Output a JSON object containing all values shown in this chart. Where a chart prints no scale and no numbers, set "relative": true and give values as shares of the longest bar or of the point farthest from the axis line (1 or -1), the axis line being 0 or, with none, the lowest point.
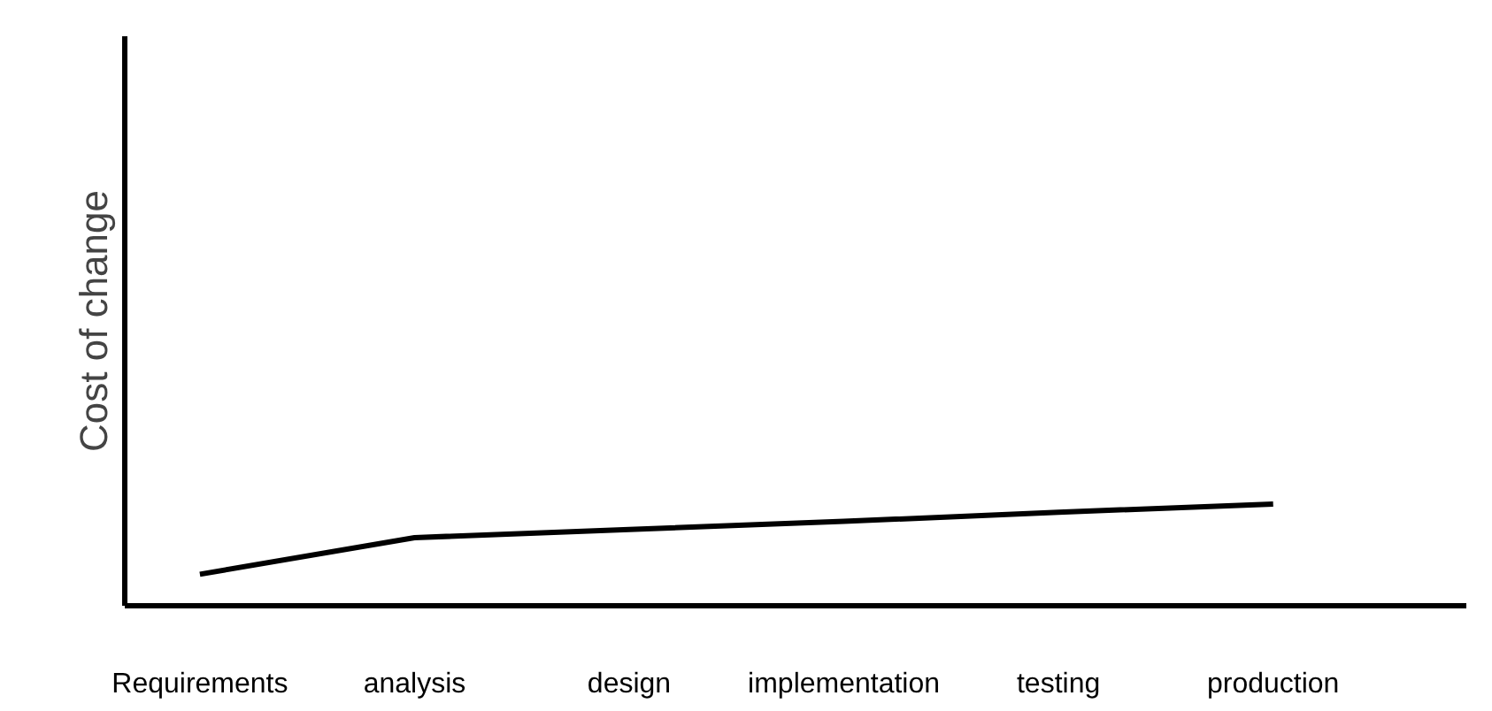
{
  "chart_data": {
    "type": "line",
    "relative": true,
    "ylabel": "Cost of change",
    "categories": [
      "Requirements",
      "analysis",
      "design",
      "implementation",
      "testing",
      "production"
    ],
    "series": [
      {
        "color": "#000000",
        "values": [
          0.31,
          0.67,
          0.75,
          0.83,
          0.92,
          1
        ]
      }
    ],
    "grid": false,
    "tick_labels": "x",
    "marker": "none",
    "line_style": "solid"
  }
}
